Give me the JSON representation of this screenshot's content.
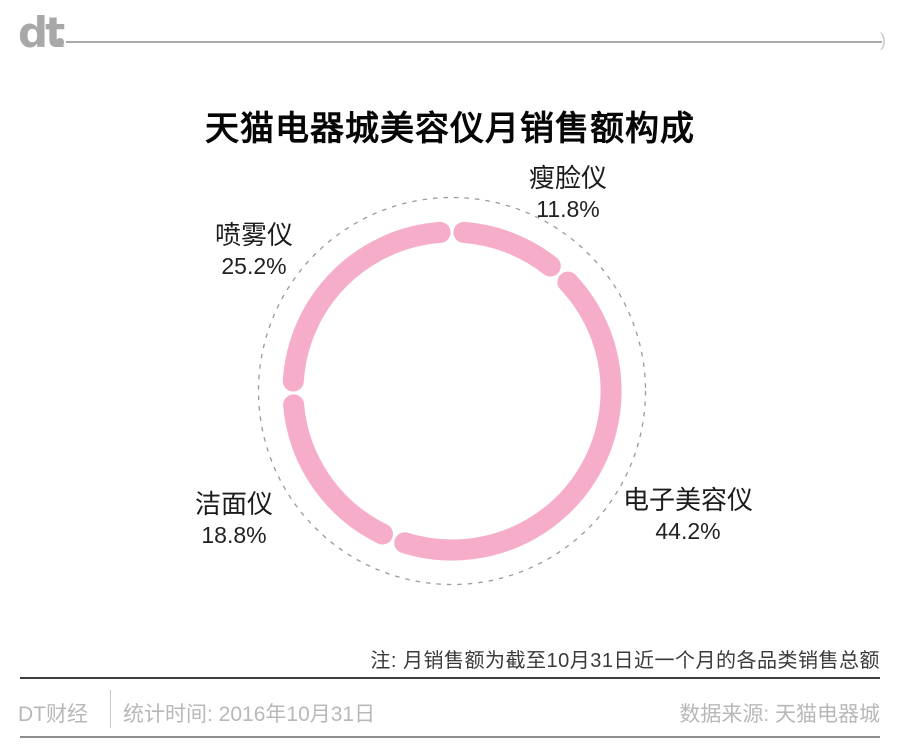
{
  "header": {
    "logo_text": "dt",
    "line_end_glyph": ")",
    "title": "天猫电器城美容仪月销售额构成"
  },
  "chart_data": {
    "type": "pie",
    "style": "donut-ring-with-rounded-segment-caps",
    "title": "天猫电器城美容仪月销售额构成",
    "unit": "%",
    "start_angle_deg": 0,
    "direction": "clockwise",
    "ring_color": "#F6ADCA",
    "guide_circle_color": "#9a9a9a",
    "segments": [
      {
        "id": "slim-face",
        "label": "瘦脸仪",
        "value": 11.8,
        "pct_label": "11.8%"
      },
      {
        "id": "electronic-beauty",
        "label": "电子美容仪",
        "value": 44.2,
        "pct_label": "44.2%"
      },
      {
        "id": "cleansing",
        "label": "洁面仪",
        "value": 18.8,
        "pct_label": "18.8%"
      },
      {
        "id": "mist-spray",
        "label": "喷雾仪",
        "value": 25.2,
        "pct_label": "25.2%"
      }
    ],
    "note": "注: 月销售额为截至10月31日近一个月的各品类销售总额"
  },
  "footer": {
    "brand": "DT财经",
    "stat_time": "统计时间: 2016年10月31日",
    "source": "数据来源: 天猫电器城"
  }
}
